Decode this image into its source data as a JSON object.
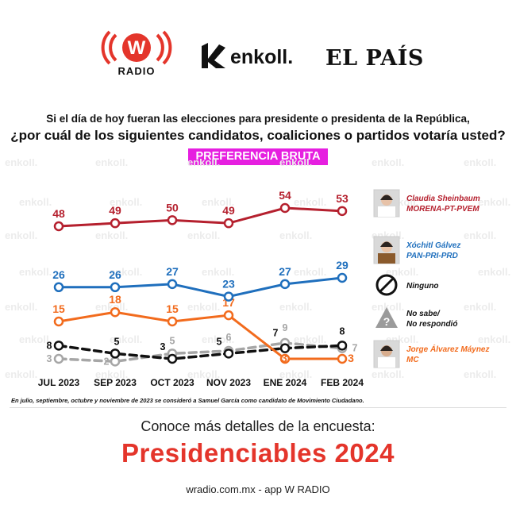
{
  "logos": {
    "wradio_label": "RADIO",
    "enkoll": "enkoll.",
    "elpais": "EL PAÍS"
  },
  "question": {
    "line1": "Si el día de hoy fueran las elecciones para presidente o presidenta de la República,",
    "line2": "¿por cuál de los siguientes candidatos, coaliciones o partidos votaría usted?",
    "tag": "PREFERENCIA BRUTA"
  },
  "watermark": "enkoll.",
  "chart_data": {
    "type": "line",
    "categories": [
      "JUL 2023",
      "SEP 2023",
      "OCT 2023",
      "NOV 2023",
      "ENE 2024",
      "FEB 2024"
    ],
    "ylim": [
      0,
      60
    ],
    "series": [
      {
        "name": "Claudia Sheinbaum",
        "party": "MORENA-PT-PVEM",
        "color": "#b5202e",
        "style": "solid",
        "values": [
          48,
          49,
          50,
          49,
          54,
          53
        ]
      },
      {
        "name": "Xóchitl Gálvez",
        "party": "PAN-PRI-PRD",
        "color": "#1f6fbd",
        "style": "solid",
        "values": [
          26,
          26,
          27,
          23,
          27,
          29
        ]
      },
      {
        "name": "Jorge Álvarez Máynez",
        "party": "MC",
        "color": "#f26b1d",
        "style": "solid",
        "values": [
          15,
          18,
          15,
          17,
          3,
          3
        ]
      },
      {
        "name": "Ninguno",
        "party": "",
        "color": "#111111",
        "style": "dashed",
        "values": [
          8,
          5,
          3,
          5,
          7,
          8
        ]
      },
      {
        "name": "No sabe/",
        "party": "No respondió",
        "color": "#a6a6a6",
        "style": "dashed",
        "values": [
          3,
          2,
          5,
          6,
          9,
          7
        ]
      }
    ],
    "footnote": "En julio, septiembre, octubre y noviembre de 2023 se consideró a Samuel García como candidato de Movimiento Ciudadano."
  },
  "promo": {
    "line": "Conoce más detalles de la encuesta:",
    "title": "Presidenciables 2024",
    "url": "wradio.com.mx - app W RADIO"
  }
}
